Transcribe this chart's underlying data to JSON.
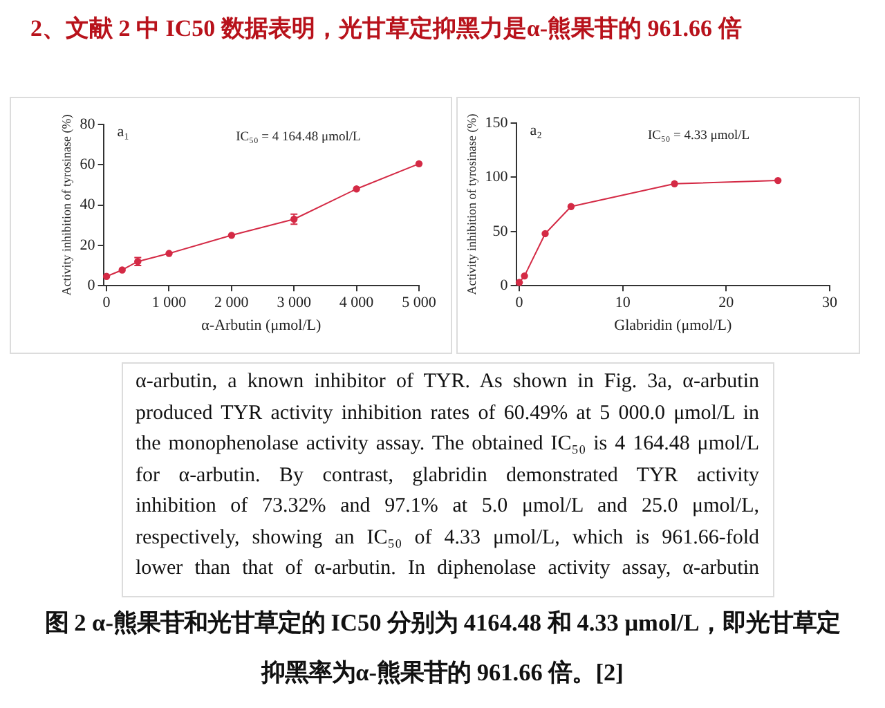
{
  "chart_data": [
    {
      "type": "other",
      "title": "2、文献 2 中 IC50 数据表明，光甘草定抑黑力是α-熊果苷的 961.66 倍"
    },
    {
      "type": "line",
      "xlabel": "α-Arbutin (μmol/L)",
      "ylabel": "Activity inhibition of tyrosinase (%)",
      "annotations": [
        "a₁",
        "IC₅₀ = 4 164.48 μmol/L"
      ],
      "x": [
        0,
        250,
        500,
        1000,
        2000,
        3000,
        4000,
        5000
      ],
      "values": [
        4.6,
        7.8,
        12,
        16,
        25,
        33,
        48,
        60.5
      ],
      "errors": [
        null,
        null,
        2,
        null,
        null,
        2.5,
        null,
        null
      ],
      "color": "#d42a45",
      "marker": "circle",
      "xlim": [
        -50,
        5000
      ],
      "ylim": [
        0,
        80
      ],
      "xticks": [
        0,
        {
          "value": 1000,
          "label": "1 000"
        },
        {
          "value": 2000,
          "label": "2 000"
        },
        {
          "value": 3000,
          "label": "3 000"
        },
        {
          "value": 4000,
          "label": "4 000"
        },
        {
          "value": 5000,
          "label": "5 000"
        }
      ],
      "yticks": [
        0,
        20,
        40,
        60,
        80
      ]
    },
    {
      "type": "line",
      "xlabel": "Glabridin (μmol/L)",
      "ylabel": "Activity inhibition of tyrosinase (%)",
      "annotations": [
        "a₂",
        "IC₅₀ = 4.33 μmol/L"
      ],
      "x": [
        0,
        0.5,
        2.5,
        5,
        15,
        25
      ],
      "values": [
        3,
        9,
        48,
        73,
        94,
        97
      ],
      "color": "#d42a45",
      "marker": "circle",
      "xlim": [
        -0.3,
        30
      ],
      "ylim": [
        0,
        150
      ],
      "xticks": [
        0,
        10,
        20,
        30
      ],
      "yticks": [
        0,
        50,
        100,
        150
      ]
    },
    {
      "type": "other",
      "annotations": [
        "α-arbutin, a known inhibitor of TYR. As shown in Fig. 3a, α-arbutin",
        "produced TYR activity inhibition rates of 60.49% at 5 000.0 μmol/L in",
        "the monophenolase activity assay. The obtained IC₅₀ is 4 164.48 μmol/L",
        "for α-arbutin. By contrast, glabridin demonstrated TYR activity",
        "inhibition of 73.32% and 97.1% at 5.0 μmol/L and 25.0 μmol/L,",
        "respectively, showing an IC₅₀ of 4.33 μmol/L, which is 961.66-fold",
        "lower than that of α-arbutin. In diphenolase activity assay, α-arbutin"
      ]
    },
    {
      "type": "other",
      "annotations": [
        "图 2 α-熊果苷和光甘草定的 IC50 分别为 4164.48 和 4.33 μmol/L，即光甘草定",
        "抑黑率为α-熊果苷的 961.66 倍。[2]"
      ]
    }
  ]
}
